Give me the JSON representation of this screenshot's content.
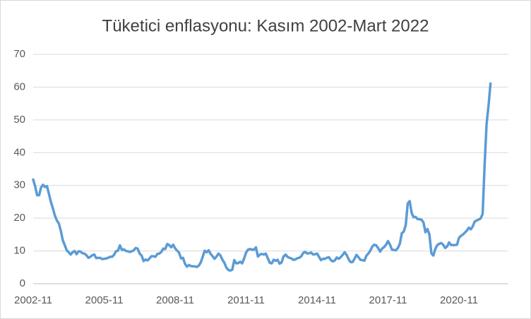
{
  "chart_data": {
    "type": "line",
    "title": "Tüketici enflasyonu: Kasım 2002-Mart 2022",
    "color": "#5b9bd5",
    "grid": true,
    "ylim": [
      0,
      70
    ],
    "yticks": [
      0,
      10,
      20,
      30,
      40,
      50,
      60,
      70
    ],
    "categories": [
      "2002-11",
      null,
      null,
      null,
      null,
      null,
      null,
      null,
      null,
      null,
      null,
      null,
      null,
      null,
      null,
      null,
      null,
      null,
      null,
      null,
      null,
      null,
      null,
      null,
      null,
      null,
      null,
      null,
      null,
      null,
      null,
      null,
      null,
      null,
      null,
      null,
      "2005-11",
      null,
      null,
      null,
      null,
      null,
      null,
      null,
      null,
      null,
      null,
      null,
      null,
      null,
      null,
      null,
      null,
      null,
      null,
      null,
      null,
      null,
      null,
      null,
      null,
      null,
      null,
      null,
      null,
      null,
      null,
      null,
      null,
      null,
      null,
      null,
      "2008-11",
      null,
      null,
      null,
      null,
      null,
      null,
      null,
      null,
      null,
      null,
      null,
      null,
      null,
      null,
      null,
      null,
      null,
      null,
      null,
      null,
      null,
      null,
      null,
      null,
      null,
      null,
      null,
      null,
      null,
      null,
      null,
      null,
      null,
      null,
      null,
      "2011-11",
      null,
      null,
      null,
      null,
      null,
      null,
      null,
      null,
      null,
      null,
      null,
      null,
      null,
      null,
      null,
      null,
      null,
      null,
      null,
      null,
      null,
      null,
      null,
      null,
      null,
      null,
      null,
      null,
      null,
      null,
      null,
      null,
      null,
      null,
      null,
      "2014-11",
      null,
      null,
      null,
      null,
      null,
      null,
      null,
      null,
      null,
      null,
      null,
      null,
      null,
      null,
      null,
      null,
      null,
      null,
      null,
      null,
      null,
      null,
      null,
      null,
      null,
      null,
      null,
      null,
      null,
      null,
      null,
      null,
      null,
      null,
      null,
      "2017-11",
      null,
      null,
      null,
      null,
      null,
      null,
      null,
      null,
      null,
      null,
      null,
      null,
      null,
      null,
      null,
      null,
      null,
      null,
      null,
      null,
      null,
      null,
      null,
      null,
      null,
      null,
      null,
      null,
      null,
      null,
      null,
      null,
      null,
      null,
      null,
      "2020-11",
      null,
      null,
      null,
      null,
      null,
      null,
      null,
      null,
      null,
      null,
      null,
      null,
      null,
      null,
      null,
      null
    ],
    "values": [
      31.8,
      29.7,
      27.0,
      27.0,
      29.4,
      30.2,
      29.5,
      29.8,
      27.4,
      24.9,
      23.0,
      20.8,
      19.3,
      18.4,
      16.2,
      13.3,
      11.8,
      10.2,
      9.6,
      8.9,
      9.6,
      10.0,
      9.0,
      9.9,
      9.8,
      9.3,
      9.2,
      8.7,
      7.9,
      8.2,
      8.7,
      8.9,
      7.8,
      7.9,
      7.9,
      7.5,
      7.6,
      7.7,
      7.9,
      8.2,
      8.2,
      8.8,
      9.9,
      10.1,
      11.7,
      10.3,
      10.5,
      10.0,
      9.9,
      9.7,
      9.9,
      10.2,
      10.9,
      10.7,
      9.2,
      8.6,
      6.9,
      7.4,
      7.1,
      7.7,
      8.4,
      8.4,
      8.2,
      9.1,
      9.2,
      9.7,
      10.7,
      10.6,
      12.1,
      11.8,
      11.1,
      11.9,
      10.8,
      10.1,
      9.5,
      7.7,
      7.9,
      6.1,
      5.2,
      5.7,
      5.4,
      5.3,
      5.3,
      5.1,
      5.5,
      6.5,
      8.2,
      10.1,
      9.6,
      10.2,
      9.1,
      8.4,
      7.6,
      8.3,
      9.2,
      8.6,
      7.3,
      6.4,
      4.9,
      4.2,
      4.0,
      4.3,
      7.2,
      6.2,
      6.3,
      6.7,
      6.2,
      7.7,
      9.5,
      10.4,
      10.6,
      10.4,
      10.4,
      11.1,
      8.3,
      8.9,
      9.1,
      8.9,
      9.2,
      7.8,
      6.4,
      6.2,
      7.3,
      7.0,
      7.3,
      6.1,
      6.5,
      8.3,
      8.9,
      8.2,
      7.9,
      7.7,
      7.3,
      7.4,
      7.8,
      7.9,
      8.4,
      9.4,
      9.7,
      9.2,
      9.3,
      9.5,
      8.9,
      9.0,
      9.2,
      8.2,
      7.2,
      7.6,
      7.6,
      7.9,
      8.1,
      7.2,
      6.8,
      7.1,
      8.0,
      7.6,
      8.1,
      8.8,
      9.6,
      8.8,
      7.5,
      6.6,
      6.6,
      7.6,
      8.8,
      8.1,
      7.3,
      7.2,
      7.0,
      8.5,
      9.2,
      10.1,
      11.3,
      11.9,
      11.7,
      10.9,
      9.8,
      10.7,
      11.2,
      11.9,
      13.0,
      11.9,
      10.4,
      10.3,
      10.2,
      10.9,
      12.2,
      15.4,
      15.9,
      17.9,
      24.5,
      25.2,
      21.6,
      20.3,
      20.4,
      19.7,
      19.7,
      19.5,
      18.7,
      15.7,
      16.7,
      15.0,
      9.3,
      8.6,
      10.6,
      11.8,
      12.2,
      12.4,
      11.9,
      10.9,
      11.4,
      12.6,
      11.8,
      11.8,
      11.8,
      11.9,
      14.0,
      14.6,
      15.0,
      15.6,
      16.2,
      17.1,
      16.6,
      17.5,
      19.0,
      19.3,
      19.6,
      19.9,
      21.3,
      36.1,
      48.7,
      54.4,
      61.1
    ]
  }
}
